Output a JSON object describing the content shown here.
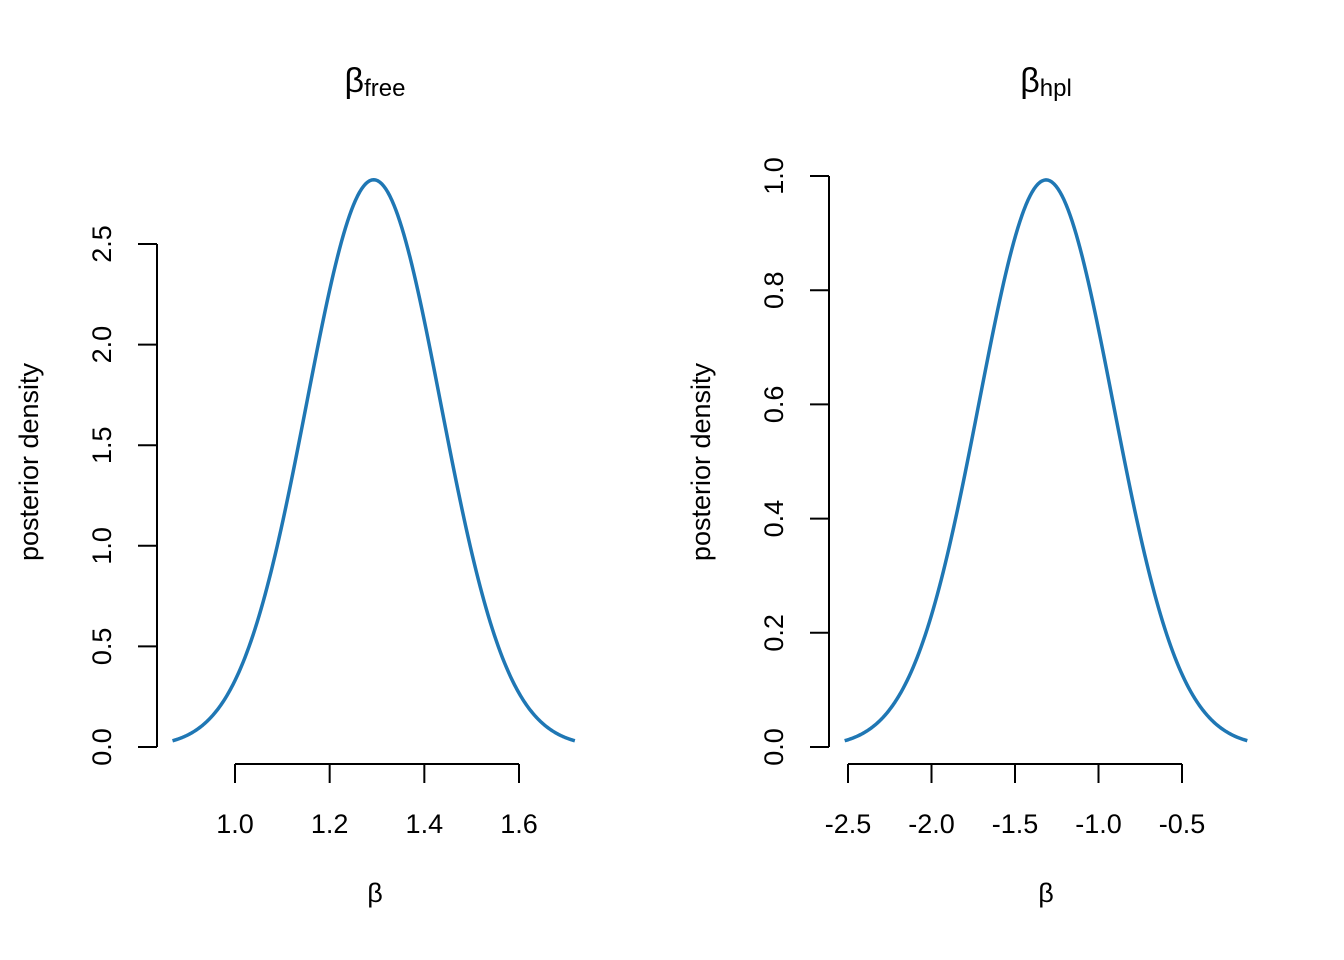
{
  "chart_data": [
    {
      "type": "line",
      "title": "β",
      "title_subscript": "free",
      "xlabel": "β",
      "ylabel": "posterior density",
      "xticks": [
        "1.0",
        "1.2",
        "1.4",
        "1.6"
      ],
      "xtick_values": [
        1.0,
        1.2,
        1.4,
        1.6
      ],
      "yticks": [
        "0.0",
        "0.5",
        "1.0",
        "1.5",
        "2.0",
        "2.5"
      ],
      "ytick_values": [
        0.0,
        0.5,
        1.0,
        1.5,
        2.0,
        2.5
      ],
      "xlim": [
        0.868,
        1.718
      ],
      "peak_density": 2.82,
      "distribution": {
        "kind": "normal",
        "mean": 1.293,
        "sd": 0.1415
      },
      "grid": false,
      "color": "#1f77b4"
    },
    {
      "type": "line",
      "title": "β",
      "title_subscript": "hpl",
      "xlabel": "β",
      "ylabel": "posterior density",
      "xticks": [
        "-2.5",
        "-2.0",
        "-1.5",
        "-1.0",
        "-0.5"
      ],
      "xtick_values": [
        -2.5,
        -2.0,
        -1.5,
        -1.0,
        -0.5
      ],
      "yticks": [
        "0.0",
        "0.2",
        "0.4",
        "0.6",
        "0.8",
        "1.0"
      ],
      "ytick_values": [
        0.0,
        0.2,
        0.4,
        0.6,
        0.8,
        1.0
      ],
      "xlim": [
        -2.52,
        -0.109
      ],
      "peak_density": 0.993,
      "distribution": {
        "kind": "normal",
        "mean": -1.314,
        "sd": 0.4017
      },
      "grid": false,
      "color": "#1f77b4"
    }
  ]
}
